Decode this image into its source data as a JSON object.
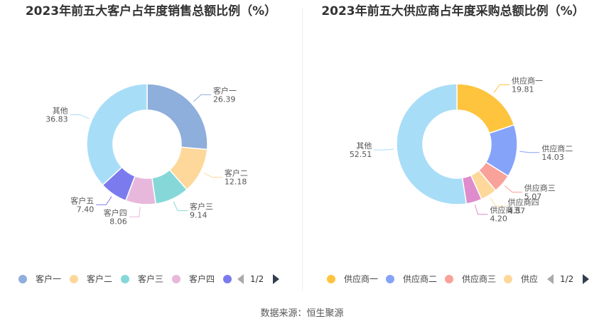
{
  "chart_data": [
    {
      "type": "pie",
      "title": "2023年前五大客户占年度销售总额比例（%）",
      "slices": [
        {
          "label": "客户一",
          "value": 26.39,
          "value_text": "26.39",
          "color": "#8eaedb"
        },
        {
          "label": "客户二",
          "value": 12.18,
          "value_text": "12.18",
          "color": "#fdd89a"
        },
        {
          "label": "客户三",
          "value": 9.14,
          "value_text": "9.14",
          "color": "#86d8d8"
        },
        {
          "label": "客户四",
          "value": 8.06,
          "value_text": "8.06",
          "color": "#e8b8dc"
        },
        {
          "label": "客户五",
          "value": 7.4,
          "value_text": "7.40",
          "color": "#7b7bee"
        },
        {
          "label": "其他",
          "value": 36.83,
          "value_text": "36.83",
          "color": "#a8ddf7"
        }
      ],
      "legend_visible": [
        "客户一",
        "客户二",
        "客户三",
        "客户四",
        ""
      ],
      "pager": "1/2"
    },
    {
      "type": "pie",
      "title": "2023年前五大供应商占年度采购总额比例（%）",
      "slices": [
        {
          "label": "供应商一",
          "value": 19.81,
          "value_text": "19.81",
          "color": "#fec43e"
        },
        {
          "label": "供应商二",
          "value": 14.03,
          "value_text": "14.03",
          "color": "#85a3f9"
        },
        {
          "label": "供应商三",
          "value": 5.07,
          "value_text": "5.07",
          "color": "#f9a29a"
        },
        {
          "label": "供应商四",
          "value": 4.37,
          "value_text": "4.37",
          "color": "#fdd89a"
        },
        {
          "label": "供应商五",
          "value": 4.2,
          "value_text": "4.20",
          "color": "#de8ccc"
        },
        {
          "label": "其他",
          "value": 52.51,
          "value_text": "52.51",
          "color": "#a8ddf7"
        }
      ],
      "legend_visible": [
        "供应商一",
        "供应商二",
        "供应商三",
        "供应"
      ],
      "pager": "1/2"
    }
  ],
  "source": "数据来源：恒生聚源"
}
